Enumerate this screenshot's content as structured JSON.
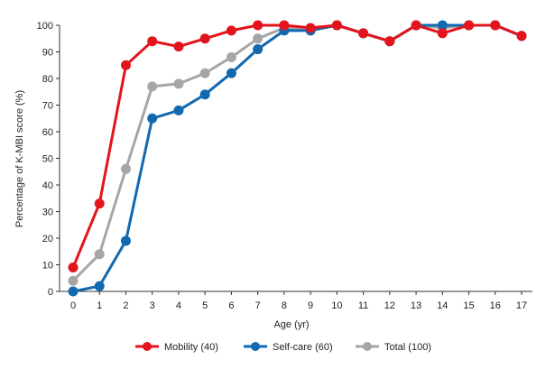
{
  "chart_data": {
    "type": "line",
    "title": "",
    "xlabel": "Age (yr)",
    "ylabel": "Percentage of K-MBI score (%)",
    "x": [
      0,
      1,
      2,
      3,
      4,
      5,
      6,
      7,
      8,
      9,
      10,
      11,
      12,
      13,
      14,
      15,
      16,
      17
    ],
    "x_tick_labels": [
      "0",
      "1",
      "2",
      "3",
      "4",
      "5",
      "6",
      "7",
      "8",
      "9",
      "10",
      "11",
      "12",
      "13",
      "14",
      "15",
      "16",
      "17"
    ],
    "ylim": [
      0,
      100
    ],
    "y_ticks": [
      0,
      10,
      20,
      30,
      40,
      50,
      60,
      70,
      80,
      90,
      100
    ],
    "grid": false,
    "legend_position": "bottom-center",
    "series": [
      {
        "name": "Mobility (40)",
        "color": "#e3141b",
        "values": [
          9,
          33,
          85,
          94,
          92,
          95,
          98,
          100,
          100,
          99,
          100,
          97,
          94,
          100,
          97,
          100,
          100,
          96
        ]
      },
      {
        "name": "Self-care (60)",
        "color": "#1269b0",
        "values": [
          0,
          2,
          19,
          65,
          68,
          74,
          82,
          91,
          98,
          98,
          100,
          97,
          94,
          100,
          100,
          100,
          100,
          96
        ]
      },
      {
        "name": "Total (100)",
        "color": "#a6a6a6",
        "values": [
          4,
          14,
          46,
          77,
          78,
          82,
          88,
          95,
          99,
          98,
          100,
          97,
          94,
          100,
          99,
          100,
          100,
          96
        ]
      }
    ]
  }
}
